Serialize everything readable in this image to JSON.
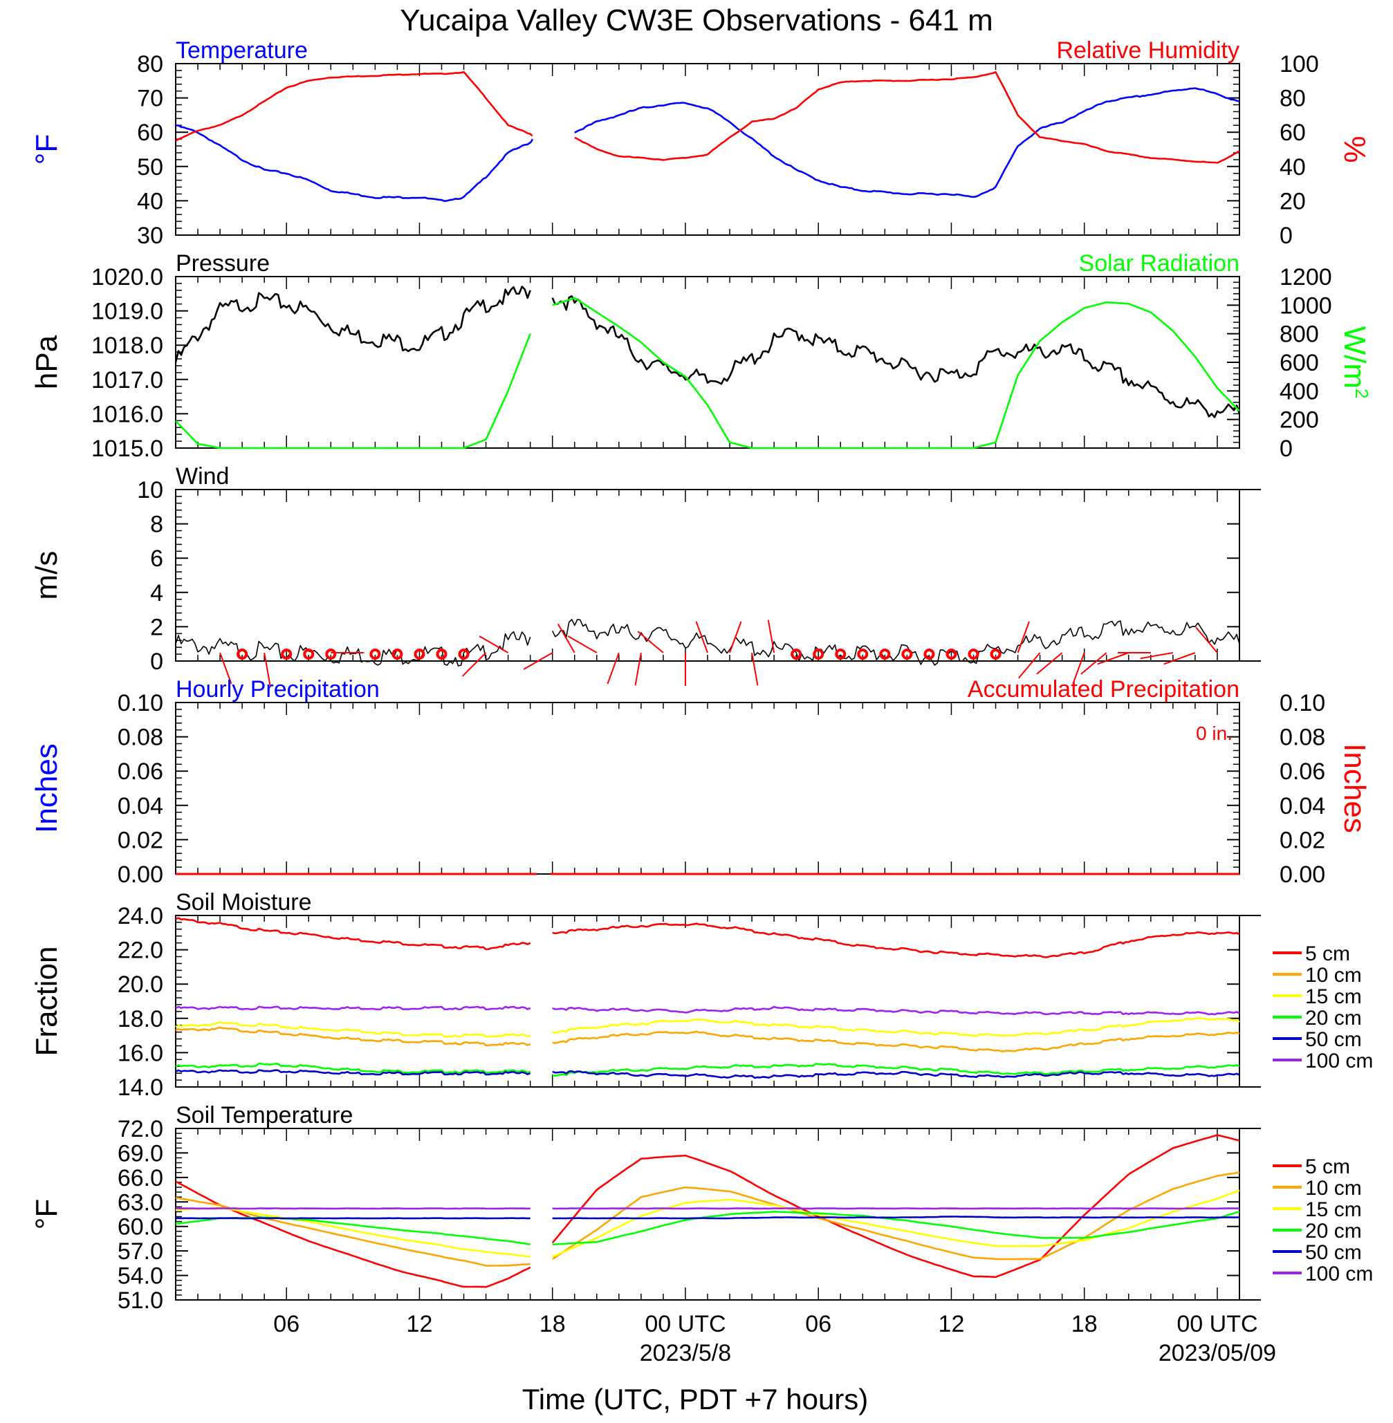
{
  "page": {
    "title": "Yucaipa Valley CW3E Observations - 641 m",
    "xlabel": "Time (UTC, PDT +7 hours)",
    "x_ticks": [
      "06",
      "12",
      "18",
      "00 UTC",
      "06",
      "12",
      "18",
      "00 UTC"
    ],
    "x_dates": [
      "2023/5/8",
      "2023/05/09"
    ]
  },
  "colors": {
    "blue": "#0000ff",
    "red": "#ff0000",
    "green": "#00ff00",
    "black": "#000000",
    "orange": "#ffa500",
    "yellow": "#ffff00",
    "purple": "#a020f0",
    "soil_blue": "#0000cd"
  },
  "chart_data": [
    {
      "id": "temp_rh",
      "type": "line",
      "left_label": "Temperature",
      "right_label": "Relative Humidity",
      "ylabel_left": "°F",
      "ylabel_right": "%",
      "ylim_left": [
        30,
        80
      ],
      "ylim_right": [
        0,
        100
      ],
      "yticks_left": [
        "80",
        "70",
        "60",
        "50",
        "40",
        "30"
      ],
      "yticks_right": [
        "100",
        "80",
        "60",
        "40",
        "20",
        "0"
      ],
      "x_hours": [
        1,
        2,
        3,
        4,
        5,
        6,
        7,
        8,
        10,
        12,
        13,
        14,
        15,
        16,
        17,
        17.1,
        18,
        19,
        20,
        21,
        22,
        23,
        24,
        25,
        26,
        27,
        28,
        29,
        30,
        31,
        32,
        34,
        36,
        37,
        38,
        39,
        40,
        41,
        42,
        43,
        44,
        45,
        46,
        47,
        48,
        49
      ],
      "series": [
        {
          "name": "Temperature",
          "axis": "left",
          "values": [
            62,
            60,
            56,
            52,
            49,
            48,
            46,
            43,
            41,
            41,
            40,
            41,
            47,
            54,
            57,
            58,
            null,
            60,
            63,
            65,
            67,
            68,
            68.5,
            67,
            63,
            58,
            53,
            49,
            46,
            44,
            43,
            42,
            42,
            41,
            44,
            56,
            61,
            63,
            66,
            69,
            70,
            71,
            72,
            73,
            71,
            69
          ]
        },
        {
          "name": "Relative Humidity",
          "axis": "right",
          "values": [
            55,
            61,
            64,
            70,
            78,
            86,
            90,
            92,
            93,
            94,
            94,
            95,
            80,
            64,
            59,
            58,
            null,
            57,
            50,
            46,
            45,
            44,
            45,
            47,
            57,
            66,
            68,
            74,
            85,
            89,
            90,
            90,
            91,
            92,
            95,
            70,
            57,
            55,
            53,
            49,
            47,
            45,
            44,
            43,
            42,
            49
          ]
        }
      ]
    },
    {
      "id": "pressure_solar",
      "type": "line",
      "left_label": "Pressure",
      "right_label": "Solar Radiation",
      "ylabel_left": "hPa",
      "ylabel_right": "W/m",
      "ylabel_right_sup": "2",
      "ylim_left": [
        1015.0,
        1020.0
      ],
      "ylim_right": [
        0,
        1200
      ],
      "yticks_left": [
        "1020.0",
        "1019.0",
        "1018.0",
        "1017.0",
        "1016.0",
        "1015.0"
      ],
      "yticks_right": [
        "1200",
        "1000",
        "800",
        "600",
        "400",
        "200",
        "0"
      ],
      "x_hours": [
        1,
        2,
        3,
        4,
        5,
        6,
        7,
        8,
        9,
        10,
        11,
        12,
        13,
        14,
        15,
        16,
        17,
        17.1,
        18,
        19,
        20,
        21,
        22,
        23,
        24,
        25,
        26,
        27,
        28,
        29,
        30,
        31,
        32,
        33,
        34,
        35,
        36,
        37,
        38,
        39,
        40,
        41,
        42,
        43,
        44,
        45,
        46,
        47,
        48,
        49
      ],
      "series": [
        {
          "name": "Pressure",
          "axis": "left",
          "values": [
            1017.5,
            1018.3,
            1019.0,
            1019.2,
            1019.3,
            1019.2,
            1019.0,
            1018.6,
            1018.3,
            1018.2,
            1018.1,
            1018.0,
            1018.3,
            1018.8,
            1019.2,
            1019.4,
            1019.6,
            null,
            1019.4,
            1019.2,
            1018.7,
            1018.2,
            1017.6,
            1017.3,
            1017.2,
            1016.9,
            1017.2,
            1017.6,
            1018.1,
            1018.4,
            1018.1,
            1017.9,
            1017.8,
            1017.6,
            1017.3,
            1017.2,
            1017.1,
            1017.3,
            1017.8,
            1017.8,
            1017.8,
            1017.9,
            1017.6,
            1017.3,
            1017.0,
            1016.7,
            1016.4,
            1016.2,
            1016.1,
            1016.0
          ]
        },
        {
          "name": "Solar Radiation",
          "axis": "right",
          "values": [
            190,
            30,
            0,
            0,
            0,
            0,
            0,
            0,
            0,
            0,
            0,
            0,
            0,
            0,
            60,
            400,
            800,
            null,
            1000,
            1050,
            950,
            850,
            740,
            600,
            500,
            300,
            40,
            0,
            0,
            0,
            0,
            0,
            0,
            0,
            0,
            0,
            0,
            0,
            40,
            510,
            750,
            880,
            980,
            1020,
            1010,
            950,
            820,
            640,
            420,
            260
          ]
        }
      ]
    },
    {
      "id": "wind",
      "type": "line",
      "left_label": "Wind",
      "ylabel_left": "m/s",
      "ylim_left": [
        0,
        10
      ],
      "yticks_left": [
        "10",
        "8",
        "6",
        "4",
        "2",
        "0"
      ],
      "x_hours": [
        1,
        2,
        3,
        4,
        5,
        6,
        7,
        8,
        9,
        10,
        11,
        12,
        13,
        14,
        15,
        16,
        17,
        17.1,
        18,
        19,
        20,
        21,
        22,
        23,
        24,
        25,
        26,
        27,
        28,
        29,
        30,
        31,
        32,
        33,
        34,
        35,
        36,
        37,
        38,
        39,
        40,
        41,
        42,
        43,
        44,
        45,
        46,
        47,
        48,
        49
      ],
      "series": [
        {
          "name": "Wind",
          "values": [
            1.0,
            0.9,
            0.8,
            0.6,
            0.6,
            0.4,
            0.5,
            0.3,
            0.4,
            0.3,
            0.3,
            0.4,
            0.3,
            0.2,
            0.6,
            1.1,
            1.4,
            null,
            1.8,
            2.0,
            1.8,
            1.6,
            1.7,
            1.5,
            1.2,
            1.0,
            0.9,
            0.8,
            0.6,
            0.5,
            0.4,
            0.5,
            0.5,
            0.4,
            0.4,
            0.3,
            0.3,
            0.3,
            0.6,
            0.9,
            1.1,
            1.3,
            1.5,
            1.8,
            1.9,
            1.8,
            1.9,
            1.8,
            1.4,
            1.0
          ]
        }
      ],
      "calm_hours": [
        4,
        6,
        7,
        8,
        10,
        11,
        12,
        13,
        14,
        29,
        30,
        31,
        32,
        33,
        34,
        35,
        36,
        37,
        38
      ],
      "barb_hours": [
        3,
        5,
        8,
        15,
        16,
        18,
        19,
        20,
        21,
        22,
        23,
        24,
        25,
        26,
        27,
        28,
        39,
        40,
        41,
        42,
        43,
        44,
        45,
        46,
        47,
        48
      ],
      "barb_dirs": [
        160,
        170,
        90,
        225,
        300,
        240,
        330,
        300,
        200,
        190,
        310,
        180,
        340,
        20,
        170,
        350,
        20,
        220,
        230,
        200,
        230,
        250,
        270,
        260,
        250,
        320
      ]
    },
    {
      "id": "precip",
      "type": "line",
      "left_label": "Hourly Precipitation",
      "right_label": "Accumulated Precipitation",
      "ylabel_left": "Inches",
      "ylabel_right": "Inches",
      "ylim_left": [
        0,
        0.1
      ],
      "ylim_right": [
        0,
        0.1
      ],
      "yticks_left": [
        "0.10",
        "0.08",
        "0.06",
        "0.04",
        "0.02",
        "0.00"
      ],
      "yticks_right": [
        "0.10",
        "0.08",
        "0.06",
        "0.04",
        "0.02",
        "0.00"
      ],
      "accum_text": "0 in.",
      "series": [
        {
          "name": "Hourly Precipitation",
          "values": [
            0,
            0
          ]
        },
        {
          "name": "Accumulated Precipitation",
          "values": [
            0,
            0
          ]
        }
      ]
    },
    {
      "id": "soil_moisture",
      "type": "line",
      "left_label": "Soil Moisture",
      "ylabel_left": "Fraction",
      "ylim_left": [
        14.0,
        24.0
      ],
      "yticks_left": [
        "24.0",
        "22.0",
        "20.0",
        "18.0",
        "16.0",
        "14.0"
      ],
      "legend": [
        "5 cm",
        "10 cm",
        "15 cm",
        "20 cm",
        "50 cm",
        "100 cm"
      ],
      "x_hours": [
        1,
        3,
        5,
        7,
        9,
        11,
        13,
        15,
        17,
        17.1,
        18,
        20,
        22,
        24,
        26,
        28,
        30,
        32,
        34,
        36,
        38,
        40,
        42,
        44,
        46,
        48,
        49
      ],
      "series": [
        {
          "name": "5 cm",
          "values": [
            23.8,
            23.5,
            23.1,
            22.9,
            22.6,
            22.4,
            22.2,
            22.1,
            22.4,
            null,
            23.0,
            23.2,
            23.4,
            23.5,
            23.3,
            22.9,
            22.6,
            22.2,
            22.0,
            21.8,
            21.7,
            21.6,
            21.8,
            22.5,
            22.9,
            23.0,
            22.9
          ]
        },
        {
          "name": "10 cm",
          "values": [
            17.3,
            17.4,
            17.2,
            17.0,
            16.8,
            16.7,
            16.6,
            16.5,
            16.5,
            null,
            16.6,
            16.9,
            17.1,
            17.2,
            17.0,
            16.8,
            16.7,
            16.5,
            16.4,
            16.3,
            16.1,
            16.2,
            16.5,
            16.8,
            17.0,
            17.1,
            17.1
          ]
        },
        {
          "name": "15 cm",
          "values": [
            17.5,
            17.7,
            17.6,
            17.4,
            17.3,
            17.1,
            17.0,
            17.0,
            17.0,
            null,
            17.2,
            17.5,
            17.7,
            17.9,
            17.8,
            17.6,
            17.5,
            17.3,
            17.2,
            17.1,
            17.0,
            17.1,
            17.3,
            17.6,
            17.9,
            18.0,
            17.8
          ]
        },
        {
          "name": "20 cm",
          "values": [
            15.2,
            15.2,
            15.3,
            15.2,
            15.0,
            14.9,
            14.9,
            14.9,
            14.9,
            null,
            14.7,
            14.9,
            15.0,
            15.1,
            15.2,
            15.2,
            15.3,
            15.2,
            15.1,
            15.0,
            14.8,
            14.8,
            14.9,
            15.0,
            15.1,
            15.2,
            15.2
          ]
        },
        {
          "name": "50 cm",
          "values": [
            14.9,
            14.9,
            14.9,
            14.9,
            14.8,
            14.8,
            14.8,
            14.8,
            14.8,
            null,
            14.9,
            14.8,
            14.7,
            14.7,
            14.6,
            14.6,
            14.7,
            14.8,
            14.8,
            14.7,
            14.6,
            14.7,
            14.8,
            14.8,
            14.7,
            14.7,
            14.7
          ]
        },
        {
          "name": "100 cm",
          "values": [
            18.6,
            18.6,
            18.6,
            18.6,
            18.6,
            18.6,
            18.6,
            18.6,
            18.6,
            null,
            18.6,
            18.5,
            18.5,
            18.4,
            18.5,
            18.6,
            18.5,
            18.5,
            18.4,
            18.4,
            18.3,
            18.3,
            18.3,
            18.3,
            18.3,
            18.3,
            18.3
          ]
        }
      ]
    },
    {
      "id": "soil_temp",
      "type": "line",
      "left_label": "Soil Temperature",
      "ylabel_left": "°F",
      "ylim_left": [
        51.0,
        72.0
      ],
      "yticks_left": [
        "72.0",
        "69.0",
        "66.0",
        "63.0",
        "60.0",
        "57.0",
        "54.0",
        "51.0"
      ],
      "legend": [
        "5 cm",
        "10 cm",
        "15 cm",
        "20 cm",
        "50 cm",
        "100 cm"
      ],
      "x_hours": [
        1,
        3,
        5,
        7,
        9,
        11,
        13,
        14,
        15,
        16,
        17,
        17.1,
        18,
        20,
        22,
        24,
        26,
        28,
        30,
        32,
        34,
        36,
        37,
        38,
        40,
        42,
        44,
        46,
        48,
        49
      ],
      "series": [
        {
          "name": "5 cm",
          "values": [
            65.5,
            62.6,
            60.4,
            58.2,
            56.4,
            54.6,
            53.3,
            52.6,
            52.6,
            53.6,
            55.0,
            null,
            58.0,
            64.5,
            68.3,
            68.7,
            66.8,
            63.8,
            61.2,
            58.8,
            56.5,
            54.7,
            53.9,
            53.8,
            55.9,
            61.4,
            66.4,
            69.6,
            71.2,
            70.5
          ]
        },
        {
          "name": "10 cm",
          "values": [
            63.5,
            62.6,
            61.0,
            59.8,
            58.6,
            57.4,
            56.3,
            55.8,
            55.2,
            55.2,
            55.4,
            null,
            56.0,
            59.6,
            63.6,
            64.8,
            64.3,
            62.7,
            61.0,
            59.6,
            58.2,
            56.8,
            56.2,
            56.0,
            56.0,
            58.6,
            62.0,
            64.6,
            66.2,
            66.6
          ]
        },
        {
          "name": "15 cm",
          "values": [
            62.0,
            62.3,
            61.4,
            60.6,
            59.5,
            58.5,
            57.7,
            57.2,
            56.9,
            56.6,
            56.3,
            null,
            56.3,
            58.6,
            61.3,
            62.9,
            63.3,
            62.6,
            61.4,
            60.4,
            59.4,
            58.4,
            58.0,
            57.6,
            57.6,
            58.3,
            59.8,
            61.8,
            63.4,
            64.4
          ]
        },
        {
          "name": "20 cm",
          "values": [
            60.3,
            61.0,
            61.1,
            60.8,
            60.2,
            59.6,
            59.1,
            58.8,
            58.5,
            58.2,
            57.8,
            null,
            57.8,
            58.1,
            59.4,
            60.8,
            61.5,
            61.8,
            61.6,
            61.3,
            60.7,
            60.0,
            59.6,
            59.2,
            58.6,
            58.6,
            59.3,
            60.2,
            61.0,
            61.8
          ]
        },
        {
          "name": "50 cm",
          "values": [
            61.0,
            61.0,
            61.0,
            61.0,
            61.0,
            61.0,
            61.0,
            61.0,
            61.0,
            61.0,
            61.0,
            null,
            61.0,
            61.0,
            61.0,
            61.0,
            61.0,
            61.1,
            61.1,
            61.1,
            61.1,
            61.2,
            61.2,
            61.1,
            61.1,
            61.1,
            61.1,
            61.1,
            61.1,
            61.1
          ]
        },
        {
          "name": "100 cm",
          "values": [
            62.2,
            62.2,
            62.2,
            62.2,
            62.2,
            62.2,
            62.2,
            62.2,
            62.2,
            62.2,
            62.2,
            null,
            62.2,
            62.2,
            62.2,
            62.2,
            62.2,
            62.2,
            62.2,
            62.2,
            62.2,
            62.2,
            62.2,
            62.2,
            62.2,
            62.2,
            62.2,
            62.2,
            62.2,
            62.2
          ]
        }
      ]
    }
  ]
}
